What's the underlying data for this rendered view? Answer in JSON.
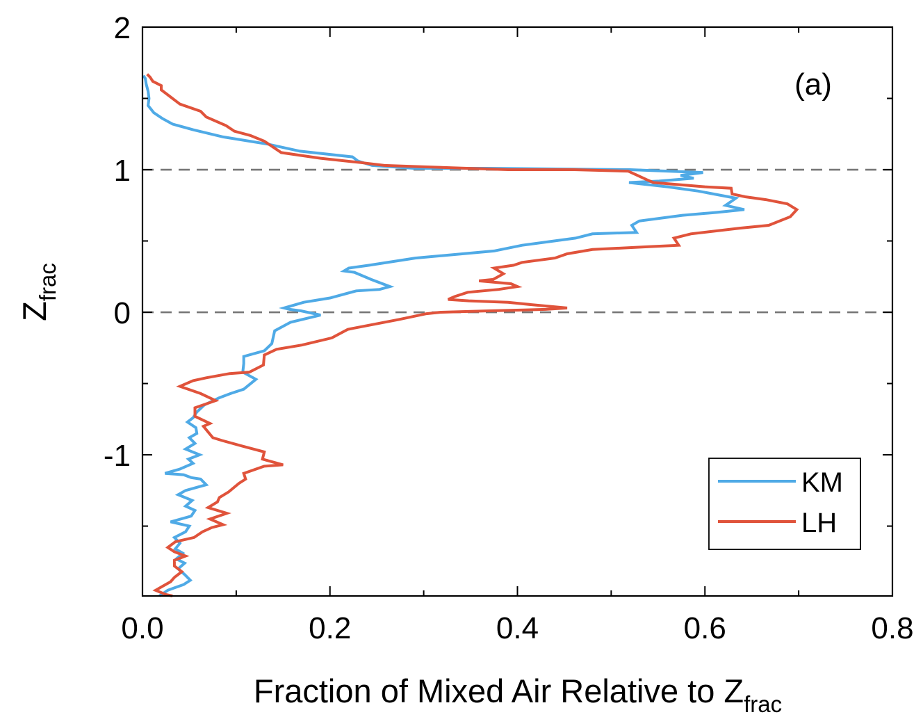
{
  "chart_data": {
    "type": "line",
    "panel_label": "(a)",
    "title": "",
    "xlabel": {
      "main": "Fraction of Mixed Air Relative to Z",
      "sub": "frac"
    },
    "ylabel": {
      "main": "Z",
      "sub": "frac"
    },
    "xlim": [
      0,
      0.8
    ],
    "ylim": [
      -1.99,
      2.0
    ],
    "x_ticks": [
      {
        "value": 0.0,
        "label": "0.0"
      },
      {
        "value": 0.2,
        "label": "0.2"
      },
      {
        "value": 0.4,
        "label": "0.4"
      },
      {
        "value": 0.6,
        "label": "0.6"
      },
      {
        "value": 0.8,
        "label": "0.8"
      }
    ],
    "x_minor_ticks": [
      0.1,
      0.3,
      0.5,
      0.7
    ],
    "y_ticks": [
      {
        "value": 2,
        "label": "2"
      },
      {
        "value": 1,
        "label": "1"
      },
      {
        "value": 0,
        "label": "0"
      },
      {
        "value": -1,
        "label": "-1"
      }
    ],
    "y_minor_ticks": [
      1.5,
      0.5,
      -0.5,
      -1.5
    ],
    "reference_lines": [
      1,
      0
    ],
    "grid": false,
    "legend_position": "bottom-right",
    "series": [
      {
        "name": "KM",
        "color": "#4FAAE6",
        "points": [
          [
            0.018,
            -1.99
          ],
          [
            0.027,
            -1.95
          ],
          [
            0.044,
            -1.91
          ],
          [
            0.051,
            -1.88
          ],
          [
            0.045,
            -1.84
          ],
          [
            0.038,
            -1.8
          ],
          [
            0.045,
            -1.76
          ],
          [
            0.036,
            -1.73
          ],
          [
            0.043,
            -1.69
          ],
          [
            0.035,
            -1.66
          ],
          [
            0.04,
            -1.62
          ],
          [
            0.034,
            -1.58
          ],
          [
            0.046,
            -1.54
          ],
          [
            0.05,
            -1.5
          ],
          [
            0.03,
            -1.47
          ],
          [
            0.052,
            -1.43
          ],
          [
            0.056,
            -1.39
          ],
          [
            0.046,
            -1.36
          ],
          [
            0.053,
            -1.32
          ],
          [
            0.038,
            -1.28
          ],
          [
            0.046,
            -1.25
          ],
          [
            0.068,
            -1.21
          ],
          [
            0.062,
            -1.17
          ],
          [
            0.052,
            -1.16
          ],
          [
            0.044,
            -1.14
          ],
          [
            0.024,
            -1.13
          ],
          [
            0.04,
            -1.1
          ],
          [
            0.054,
            -1.06
          ],
          [
            0.049,
            -1.03
          ],
          [
            0.061,
            -1.0
          ],
          [
            0.046,
            -0.96
          ],
          [
            0.056,
            -0.92
          ],
          [
            0.05,
            -0.88
          ],
          [
            0.058,
            -0.85
          ],
          [
            0.057,
            -0.81
          ],
          [
            0.048,
            -0.77
          ],
          [
            0.054,
            -0.74
          ],
          [
            0.058,
            -0.7
          ],
          [
            0.066,
            -0.65
          ],
          [
            0.082,
            -0.6
          ],
          [
            0.094,
            -0.57
          ],
          [
            0.108,
            -0.54
          ],
          [
            0.121,
            -0.47
          ],
          [
            0.107,
            -0.42
          ],
          [
            0.108,
            -0.36
          ],
          [
            0.108,
            -0.31
          ],
          [
            0.13,
            -0.27
          ],
          [
            0.138,
            -0.22
          ],
          [
            0.141,
            -0.13
          ],
          [
            0.158,
            -0.07
          ],
          [
            0.19,
            -0.02
          ],
          [
            0.169,
            0.01
          ],
          [
            0.157,
            0.02
          ],
          [
            0.151,
            0.03
          ],
          [
            0.172,
            0.07
          ],
          [
            0.2,
            0.1
          ],
          [
            0.228,
            0.15
          ],
          [
            0.253,
            0.16
          ],
          [
            0.264,
            0.18
          ],
          [
            0.244,
            0.23
          ],
          [
            0.226,
            0.28
          ],
          [
            0.215,
            0.29
          ],
          [
            0.22,
            0.31
          ],
          [
            0.242,
            0.33
          ],
          [
            0.291,
            0.38
          ],
          [
            0.375,
            0.43
          ],
          [
            0.405,
            0.47
          ],
          [
            0.462,
            0.52
          ],
          [
            0.48,
            0.55
          ],
          [
            0.527,
            0.56
          ],
          [
            0.522,
            0.61
          ],
          [
            0.53,
            0.64
          ],
          [
            0.576,
            0.68
          ],
          [
            0.612,
            0.7
          ],
          [
            0.642,
            0.72
          ],
          [
            0.622,
            0.75
          ],
          [
            0.633,
            0.8
          ],
          [
            0.593,
            0.85
          ],
          [
            0.56,
            0.88
          ],
          [
            0.519,
            0.91
          ],
          [
            0.551,
            0.92
          ],
          [
            0.588,
            0.94
          ],
          [
            0.574,
            0.96
          ],
          [
            0.598,
            0.98
          ],
          [
            0.52,
            1.0
          ],
          [
            0.367,
            1.01
          ],
          [
            0.289,
            1.01
          ],
          [
            0.245,
            1.03
          ],
          [
            0.23,
            1.06
          ],
          [
            0.224,
            1.09
          ],
          [
            0.168,
            1.13
          ],
          [
            0.133,
            1.18
          ],
          [
            0.086,
            1.23
          ],
          [
            0.054,
            1.28
          ],
          [
            0.032,
            1.32
          ],
          [
            0.021,
            1.36
          ],
          [
            0.012,
            1.4
          ],
          [
            0.006,
            1.45
          ],
          [
            0.007,
            1.5
          ],
          [
            0.006,
            1.55
          ],
          [
            0.004,
            1.6
          ],
          [
            0.003,
            1.64
          ],
          [
            0.001,
            1.66
          ]
        ]
      },
      {
        "name": "LH",
        "color": "#E0533B",
        "points": [
          [
            0.032,
            -1.99
          ],
          [
            0.025,
            -1.98
          ],
          [
            0.014,
            -1.95
          ],
          [
            0.022,
            -1.92
          ],
          [
            0.03,
            -1.89
          ],
          [
            0.034,
            -1.86
          ],
          [
            0.042,
            -1.82
          ],
          [
            0.034,
            -1.78
          ],
          [
            0.034,
            -1.74
          ],
          [
            0.046,
            -1.71
          ],
          [
            0.034,
            -1.68
          ],
          [
            0.027,
            -1.65
          ],
          [
            0.035,
            -1.61
          ],
          [
            0.055,
            -1.58
          ],
          [
            0.064,
            -1.54
          ],
          [
            0.074,
            -1.51
          ],
          [
            0.086,
            -1.49
          ],
          [
            0.072,
            -1.45
          ],
          [
            0.09,
            -1.41
          ],
          [
            0.07,
            -1.37
          ],
          [
            0.08,
            -1.33
          ],
          [
            0.082,
            -1.3
          ],
          [
            0.092,
            -1.26
          ],
          [
            0.103,
            -1.2
          ],
          [
            0.11,
            -1.17
          ],
          [
            0.108,
            -1.13
          ],
          [
            0.13,
            -1.08
          ],
          [
            0.15,
            -1.07
          ],
          [
            0.128,
            -1.03
          ],
          [
            0.13,
            -0.98
          ],
          [
            0.107,
            -0.94
          ],
          [
            0.085,
            -0.9
          ],
          [
            0.075,
            -0.88
          ],
          [
            0.07,
            -0.84
          ],
          [
            0.065,
            -0.8
          ],
          [
            0.072,
            -0.78
          ],
          [
            0.056,
            -0.73
          ],
          [
            0.056,
            -0.67
          ],
          [
            0.078,
            -0.62
          ],
          [
            0.062,
            -0.57
          ],
          [
            0.04,
            -0.52
          ],
          [
            0.054,
            -0.48
          ],
          [
            0.068,
            -0.46
          ],
          [
            0.093,
            -0.43
          ],
          [
            0.114,
            -0.42
          ],
          [
            0.129,
            -0.37
          ],
          [
            0.13,
            -0.3
          ],
          [
            0.143,
            -0.26
          ],
          [
            0.17,
            -0.23
          ],
          [
            0.202,
            -0.18
          ],
          [
            0.219,
            -0.12
          ],
          [
            0.274,
            -0.05
          ],
          [
            0.303,
            -0.01
          ],
          [
            0.318,
            0.0
          ],
          [
            0.37,
            0.01
          ],
          [
            0.43,
            0.02
          ],
          [
            0.453,
            0.03
          ],
          [
            0.42,
            0.05
          ],
          [
            0.39,
            0.07
          ],
          [
            0.348,
            0.08
          ],
          [
            0.326,
            0.09
          ],
          [
            0.333,
            0.11
          ],
          [
            0.347,
            0.14
          ],
          [
            0.38,
            0.16
          ],
          [
            0.4,
            0.18
          ],
          [
            0.393,
            0.2
          ],
          [
            0.359,
            0.22
          ],
          [
            0.374,
            0.23
          ],
          [
            0.385,
            0.27
          ],
          [
            0.375,
            0.31
          ],
          [
            0.396,
            0.33
          ],
          [
            0.405,
            0.35
          ],
          [
            0.44,
            0.38
          ],
          [
            0.453,
            0.41
          ],
          [
            0.48,
            0.44
          ],
          [
            0.54,
            0.46
          ],
          [
            0.572,
            0.47
          ],
          [
            0.567,
            0.52
          ],
          [
            0.585,
            0.55
          ],
          [
            0.637,
            0.59
          ],
          [
            0.668,
            0.61
          ],
          [
            0.691,
            0.67
          ],
          [
            0.698,
            0.72
          ],
          [
            0.688,
            0.76
          ],
          [
            0.665,
            0.79
          ],
          [
            0.643,
            0.81
          ],
          [
            0.629,
            0.83
          ],
          [
            0.628,
            0.87
          ],
          [
            0.6,
            0.88
          ],
          [
            0.545,
            0.91
          ],
          [
            0.538,
            0.93
          ],
          [
            0.528,
            0.96
          ],
          [
            0.518,
            0.99
          ],
          [
            0.46,
            1.0
          ],
          [
            0.39,
            1.0
          ],
          [
            0.3,
            1.02
          ],
          [
            0.258,
            1.03
          ],
          [
            0.233,
            1.05
          ],
          [
            0.19,
            1.08
          ],
          [
            0.148,
            1.12
          ],
          [
            0.13,
            1.2
          ],
          [
            0.115,
            1.24
          ],
          [
            0.098,
            1.27
          ],
          [
            0.089,
            1.31
          ],
          [
            0.068,
            1.37
          ],
          [
            0.062,
            1.41
          ],
          [
            0.04,
            1.46
          ],
          [
            0.03,
            1.51
          ],
          [
            0.02,
            1.56
          ],
          [
            0.02,
            1.59
          ],
          [
            0.011,
            1.62
          ],
          [
            0.008,
            1.65
          ],
          [
            0.005,
            1.67
          ]
        ]
      }
    ]
  }
}
